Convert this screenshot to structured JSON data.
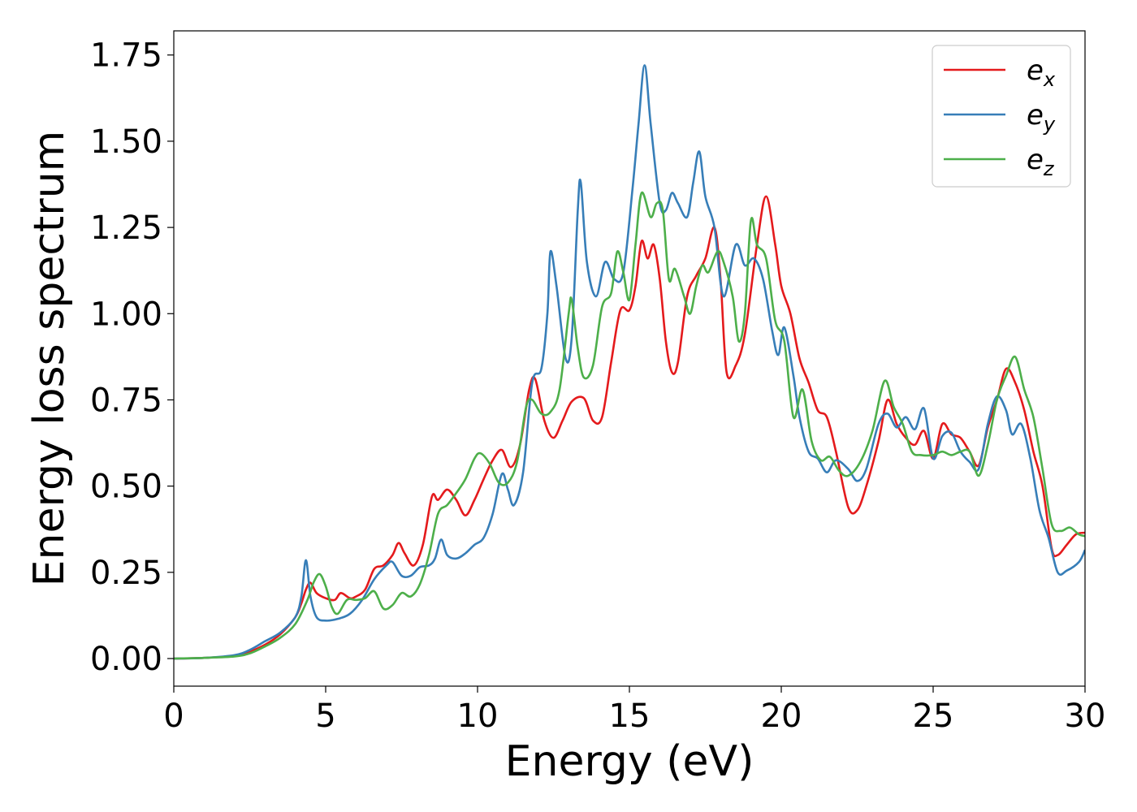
{
  "chart_data": {
    "type": "line",
    "title": "",
    "xlabel": "Energy (eV)",
    "ylabel": "Energy loss spectrum",
    "xlim": [
      0,
      30
    ],
    "ylim": [
      -0.08,
      1.82
    ],
    "xticks": [
      0,
      5,
      10,
      15,
      20,
      25,
      30
    ],
    "xtick_labels": [
      "0",
      "5",
      "10",
      "15",
      "20",
      "25",
      "30"
    ],
    "yticks": [
      0,
      0.25,
      0.5,
      0.75,
      1.0,
      1.25,
      1.5,
      1.75
    ],
    "ytick_labels": [
      "0.00",
      "0.25",
      "0.50",
      "0.75",
      "1.00",
      "1.25",
      "1.50",
      "1.75"
    ],
    "grid": false,
    "legend_position": "top-right",
    "series": [
      {
        "name": "e_x",
        "label_base": "e",
        "label_sub": "x",
        "color": "#e41a1c",
        "points": [
          [
            0,
            0
          ],
          [
            1,
            0.002
          ],
          [
            2,
            0.008
          ],
          [
            2.5,
            0.02
          ],
          [
            3,
            0.04
          ],
          [
            3.5,
            0.07
          ],
          [
            4,
            0.12
          ],
          [
            4.2,
            0.16
          ],
          [
            4.35,
            0.2
          ],
          [
            4.5,
            0.22
          ],
          [
            4.7,
            0.19
          ],
          [
            5,
            0.175
          ],
          [
            5.3,
            0.17
          ],
          [
            5.5,
            0.19
          ],
          [
            5.8,
            0.175
          ],
          [
            6,
            0.18
          ],
          [
            6.3,
            0.2
          ],
          [
            6.6,
            0.26
          ],
          [
            6.9,
            0.27
          ],
          [
            7.2,
            0.3
          ],
          [
            7.4,
            0.335
          ],
          [
            7.6,
            0.305
          ],
          [
            7.9,
            0.27
          ],
          [
            8.2,
            0.33
          ],
          [
            8.5,
            0.47
          ],
          [
            8.7,
            0.46
          ],
          [
            9,
            0.49
          ],
          [
            9.3,
            0.46
          ],
          [
            9.6,
            0.415
          ],
          [
            9.9,
            0.46
          ],
          [
            10.2,
            0.52
          ],
          [
            10.5,
            0.575
          ],
          [
            10.8,
            0.605
          ],
          [
            11.1,
            0.555
          ],
          [
            11.4,
            0.62
          ],
          [
            11.7,
            0.78
          ],
          [
            11.9,
            0.81
          ],
          [
            12.2,
            0.69
          ],
          [
            12.5,
            0.64
          ],
          [
            12.8,
            0.69
          ],
          [
            13.1,
            0.745
          ],
          [
            13.5,
            0.755
          ],
          [
            13.8,
            0.69
          ],
          [
            14.1,
            0.7
          ],
          [
            14.4,
            0.86
          ],
          [
            14.7,
            1.01
          ],
          [
            15,
            1.01
          ],
          [
            15.2,
            1.08
          ],
          [
            15.4,
            1.21
          ],
          [
            15.6,
            1.16
          ],
          [
            15.8,
            1.2
          ],
          [
            16,
            1.1
          ],
          [
            16.2,
            0.92
          ],
          [
            16.4,
            0.83
          ],
          [
            16.6,
            0.86
          ],
          [
            16.9,
            1.05
          ],
          [
            17.2,
            1.11
          ],
          [
            17.5,
            1.16
          ],
          [
            17.8,
            1.25
          ],
          [
            18,
            1.1
          ],
          [
            18.2,
            0.83
          ],
          [
            18.5,
            0.85
          ],
          [
            18.8,
            0.94
          ],
          [
            19.2,
            1.2
          ],
          [
            19.5,
            1.34
          ],
          [
            19.8,
            1.2
          ],
          [
            20,
            1.08
          ],
          [
            20.3,
            1.0
          ],
          [
            20.6,
            0.87
          ],
          [
            20.9,
            0.8
          ],
          [
            21.2,
            0.72
          ],
          [
            21.5,
            0.7
          ],
          [
            21.8,
            0.6
          ],
          [
            22.2,
            0.44
          ],
          [
            22.5,
            0.43
          ],
          [
            22.8,
            0.5
          ],
          [
            23.2,
            0.63
          ],
          [
            23.5,
            0.75
          ],
          [
            23.8,
            0.68
          ],
          [
            24.1,
            0.64
          ],
          [
            24.4,
            0.62
          ],
          [
            24.7,
            0.66
          ],
          [
            25,
            0.58
          ],
          [
            25.3,
            0.68
          ],
          [
            25.6,
            0.65
          ],
          [
            25.9,
            0.64
          ],
          [
            26.2,
            0.6
          ],
          [
            26.5,
            0.56
          ],
          [
            26.8,
            0.67
          ],
          [
            27.1,
            0.75
          ],
          [
            27.4,
            0.84
          ],
          [
            27.7,
            0.8
          ],
          [
            28,
            0.72
          ],
          [
            28.3,
            0.6
          ],
          [
            28.6,
            0.5
          ],
          [
            28.9,
            0.32
          ],
          [
            29.1,
            0.3
          ],
          [
            29.4,
            0.33
          ],
          [
            29.7,
            0.36
          ],
          [
            30,
            0.365
          ]
        ]
      },
      {
        "name": "e_y",
        "label_base": "e",
        "label_sub": "y",
        "color": "#377eb8",
        "points": [
          [
            0,
            0
          ],
          [
            1,
            0.002
          ],
          [
            2,
            0.01
          ],
          [
            2.5,
            0.025
          ],
          [
            3,
            0.05
          ],
          [
            3.5,
            0.075
          ],
          [
            4,
            0.12
          ],
          [
            4.2,
            0.18
          ],
          [
            4.35,
            0.285
          ],
          [
            4.5,
            0.18
          ],
          [
            4.7,
            0.12
          ],
          [
            5,
            0.11
          ],
          [
            5.4,
            0.115
          ],
          [
            5.8,
            0.13
          ],
          [
            6.2,
            0.17
          ],
          [
            6.6,
            0.23
          ],
          [
            7,
            0.27
          ],
          [
            7.2,
            0.28
          ],
          [
            7.5,
            0.24
          ],
          [
            7.8,
            0.24
          ],
          [
            8.1,
            0.265
          ],
          [
            8.4,
            0.27
          ],
          [
            8.6,
            0.29
          ],
          [
            8.8,
            0.345
          ],
          [
            9,
            0.3
          ],
          [
            9.3,
            0.29
          ],
          [
            9.6,
            0.305
          ],
          [
            9.9,
            0.33
          ],
          [
            10.2,
            0.35
          ],
          [
            10.5,
            0.42
          ],
          [
            10.8,
            0.535
          ],
          [
            11,
            0.49
          ],
          [
            11.2,
            0.445
          ],
          [
            11.5,
            0.54
          ],
          [
            11.8,
            0.8
          ],
          [
            12.1,
            0.84
          ],
          [
            12.3,
            1.0
          ],
          [
            12.4,
            1.18
          ],
          [
            12.6,
            1.08
          ],
          [
            12.9,
            0.87
          ],
          [
            13.1,
            0.93
          ],
          [
            13.3,
            1.3
          ],
          [
            13.4,
            1.38
          ],
          [
            13.6,
            1.15
          ],
          [
            13.9,
            1.05
          ],
          [
            14.2,
            1.15
          ],
          [
            14.5,
            1.1
          ],
          [
            14.8,
            1.12
          ],
          [
            15.1,
            1.36
          ],
          [
            15.3,
            1.55
          ],
          [
            15.5,
            1.72
          ],
          [
            15.7,
            1.55
          ],
          [
            16,
            1.32
          ],
          [
            16.2,
            1.3
          ],
          [
            16.4,
            1.35
          ],
          [
            16.6,
            1.32
          ],
          [
            16.9,
            1.28
          ],
          [
            17.1,
            1.38
          ],
          [
            17.3,
            1.47
          ],
          [
            17.5,
            1.34
          ],
          [
            17.8,
            1.25
          ],
          [
            18.1,
            1.05
          ],
          [
            18.5,
            1.2
          ],
          [
            18.8,
            1.14
          ],
          [
            19.1,
            1.16
          ],
          [
            19.4,
            1.1
          ],
          [
            19.7,
            0.95
          ],
          [
            19.9,
            0.88
          ],
          [
            20.1,
            0.96
          ],
          [
            20.4,
            0.82
          ],
          [
            20.6,
            0.7
          ],
          [
            20.9,
            0.6
          ],
          [
            21.2,
            0.58
          ],
          [
            21.5,
            0.54
          ],
          [
            21.8,
            0.575
          ],
          [
            22.2,
            0.55
          ],
          [
            22.5,
            0.515
          ],
          [
            22.8,
            0.55
          ],
          [
            23.2,
            0.68
          ],
          [
            23.5,
            0.71
          ],
          [
            23.8,
            0.67
          ],
          [
            24.1,
            0.7
          ],
          [
            24.4,
            0.665
          ],
          [
            24.7,
            0.725
          ],
          [
            25,
            0.58
          ],
          [
            25.3,
            0.645
          ],
          [
            25.6,
            0.655
          ],
          [
            25.9,
            0.6
          ],
          [
            26.2,
            0.57
          ],
          [
            26.5,
            0.55
          ],
          [
            26.8,
            0.68
          ],
          [
            27.1,
            0.76
          ],
          [
            27.4,
            0.72
          ],
          [
            27.6,
            0.65
          ],
          [
            27.9,
            0.68
          ],
          [
            28.2,
            0.58
          ],
          [
            28.5,
            0.43
          ],
          [
            28.8,
            0.35
          ],
          [
            29.1,
            0.25
          ],
          [
            29.4,
            0.255
          ],
          [
            29.8,
            0.28
          ],
          [
            30,
            0.315
          ]
        ]
      },
      {
        "name": "e_z",
        "label_base": "e",
        "label_sub": "z",
        "color": "#4daf4a",
        "points": [
          [
            0,
            0
          ],
          [
            1,
            0.002
          ],
          [
            2,
            0.006
          ],
          [
            2.5,
            0.015
          ],
          [
            3,
            0.035
          ],
          [
            3.5,
            0.06
          ],
          [
            4,
            0.1
          ],
          [
            4.4,
            0.17
          ],
          [
            4.6,
            0.22
          ],
          [
            4.8,
            0.245
          ],
          [
            5,
            0.21
          ],
          [
            5.2,
            0.15
          ],
          [
            5.4,
            0.13
          ],
          [
            5.7,
            0.17
          ],
          [
            6,
            0.17
          ],
          [
            6.3,
            0.175
          ],
          [
            6.6,
            0.195
          ],
          [
            6.9,
            0.145
          ],
          [
            7.2,
            0.155
          ],
          [
            7.5,
            0.19
          ],
          [
            7.8,
            0.18
          ],
          [
            8.1,
            0.215
          ],
          [
            8.4,
            0.3
          ],
          [
            8.7,
            0.42
          ],
          [
            9,
            0.445
          ],
          [
            9.3,
            0.48
          ],
          [
            9.6,
            0.52
          ],
          [
            9.9,
            0.58
          ],
          [
            10.1,
            0.595
          ],
          [
            10.4,
            0.565
          ],
          [
            10.7,
            0.51
          ],
          [
            11,
            0.51
          ],
          [
            11.3,
            0.57
          ],
          [
            11.6,
            0.73
          ],
          [
            11.8,
            0.75
          ],
          [
            12.1,
            0.71
          ],
          [
            12.4,
            0.715
          ],
          [
            12.7,
            0.78
          ],
          [
            13,
            1.0
          ],
          [
            13.1,
            1.04
          ],
          [
            13.3,
            0.9
          ],
          [
            13.5,
            0.815
          ],
          [
            13.8,
            0.85
          ],
          [
            14.1,
            1.02
          ],
          [
            14.4,
            1.06
          ],
          [
            14.6,
            1.18
          ],
          [
            14.8,
            1.12
          ],
          [
            15,
            1.04
          ],
          [
            15.2,
            1.2
          ],
          [
            15.4,
            1.35
          ],
          [
            15.7,
            1.28
          ],
          [
            15.9,
            1.32
          ],
          [
            16.1,
            1.3
          ],
          [
            16.3,
            1.1
          ],
          [
            16.5,
            1.13
          ],
          [
            16.8,
            1.05
          ],
          [
            17,
            1.0
          ],
          [
            17.2,
            1.08
          ],
          [
            17.4,
            1.14
          ],
          [
            17.6,
            1.12
          ],
          [
            17.9,
            1.18
          ],
          [
            18.1,
            1.15
          ],
          [
            18.4,
            1.05
          ],
          [
            18.6,
            0.92
          ],
          [
            18.8,
            1.0
          ],
          [
            19,
            1.27
          ],
          [
            19.2,
            1.2
          ],
          [
            19.5,
            1.16
          ],
          [
            19.8,
            0.98
          ],
          [
            20.1,
            0.92
          ],
          [
            20.4,
            0.7
          ],
          [
            20.7,
            0.78
          ],
          [
            21,
            0.63
          ],
          [
            21.3,
            0.575
          ],
          [
            21.6,
            0.585
          ],
          [
            21.9,
            0.545
          ],
          [
            22.2,
            0.53
          ],
          [
            22.6,
            0.57
          ],
          [
            23,
            0.66
          ],
          [
            23.4,
            0.805
          ],
          [
            23.7,
            0.73
          ],
          [
            24,
            0.68
          ],
          [
            24.3,
            0.6
          ],
          [
            24.6,
            0.59
          ],
          [
            25,
            0.59
          ],
          [
            25.3,
            0.6
          ],
          [
            25.6,
            0.59
          ],
          [
            25.9,
            0.6
          ],
          [
            26.2,
            0.6
          ],
          [
            26.5,
            0.53
          ],
          [
            26.8,
            0.62
          ],
          [
            27.1,
            0.75
          ],
          [
            27.4,
            0.82
          ],
          [
            27.7,
            0.875
          ],
          [
            28,
            0.78
          ],
          [
            28.3,
            0.7
          ],
          [
            28.6,
            0.55
          ],
          [
            28.9,
            0.39
          ],
          [
            29.2,
            0.37
          ],
          [
            29.5,
            0.38
          ],
          [
            29.8,
            0.36
          ],
          [
            30,
            0.355
          ]
        ]
      }
    ]
  }
}
